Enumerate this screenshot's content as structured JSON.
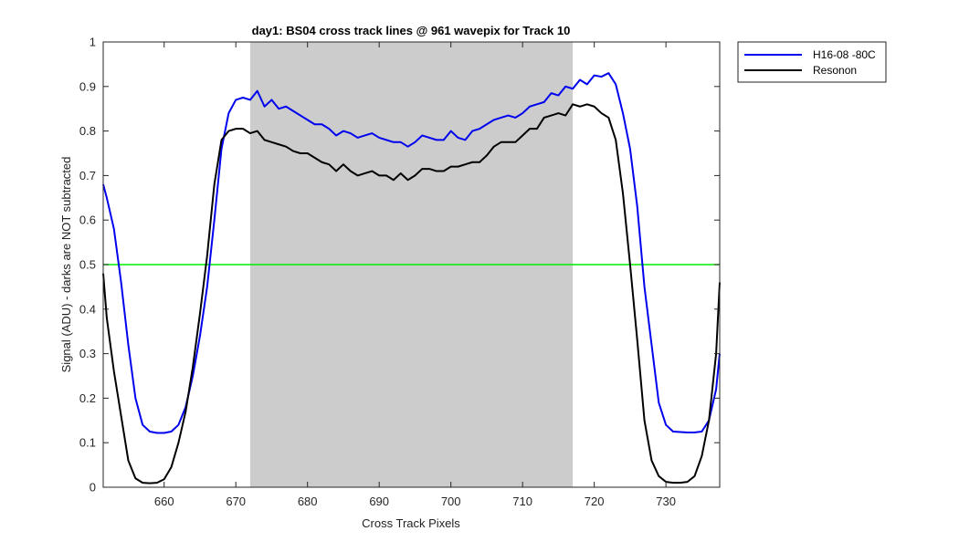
{
  "chart_data": {
    "type": "line",
    "title": "day1: BS04  cross track lines @ 961 wavepix for Track 10",
    "xlabel": "Cross Track Pixels",
    "ylabel": "Signal (ADU) - darks are NOT subtracted",
    "xlim": [
      651.5,
      737.5
    ],
    "ylim": [
      0,
      1
    ],
    "xticks": [
      660,
      670,
      680,
      690,
      700,
      710,
      720,
      730
    ],
    "yticks": [
      0,
      0.1,
      0.2,
      0.3,
      0.4,
      0.5,
      0.6,
      0.7,
      0.8,
      0.9,
      1
    ],
    "grid": false,
    "legend_position": "outside-top-right",
    "shaded_region": {
      "x": [
        672,
        717
      ],
      "color": "#cccccc"
    },
    "hline": {
      "y": 0.5,
      "color": "#00ee00"
    },
    "x": [
      651.5,
      652,
      653,
      654,
      655,
      656,
      657,
      658,
      659,
      660,
      661,
      662,
      663,
      664,
      665,
      666,
      667,
      668,
      669,
      670,
      671,
      672,
      673,
      674,
      675,
      676,
      677,
      678,
      679,
      680,
      681,
      682,
      683,
      684,
      685,
      686,
      687,
      688,
      689,
      690,
      691,
      692,
      693,
      694,
      695,
      696,
      697,
      698,
      699,
      700,
      701,
      702,
      703,
      704,
      705,
      706,
      707,
      708,
      709,
      710,
      711,
      712,
      713,
      714,
      715,
      716,
      717,
      718,
      719,
      720,
      721,
      722,
      723,
      724,
      725,
      726,
      727,
      728,
      729,
      730,
      731,
      732,
      733,
      734,
      735,
      736,
      737,
      737.5
    ],
    "series": [
      {
        "name": "H16-08 -80C",
        "color": "#0000ee",
        "values": [
          0.68,
          0.65,
          0.58,
          0.46,
          0.32,
          0.2,
          0.14,
          0.125,
          0.122,
          0.122,
          0.125,
          0.14,
          0.18,
          0.25,
          0.34,
          0.45,
          0.6,
          0.76,
          0.84,
          0.87,
          0.875,
          0.87,
          0.89,
          0.855,
          0.87,
          0.85,
          0.855,
          0.845,
          0.835,
          0.825,
          0.815,
          0.815,
          0.805,
          0.79,
          0.8,
          0.795,
          0.785,
          0.79,
          0.795,
          0.785,
          0.78,
          0.775,
          0.775,
          0.765,
          0.775,
          0.79,
          0.785,
          0.78,
          0.78,
          0.8,
          0.785,
          0.78,
          0.8,
          0.805,
          0.815,
          0.825,
          0.83,
          0.835,
          0.83,
          0.84,
          0.855,
          0.86,
          0.865,
          0.885,
          0.88,
          0.9,
          0.895,
          0.915,
          0.905,
          0.925,
          0.922,
          0.93,
          0.905,
          0.84,
          0.76,
          0.63,
          0.45,
          0.32,
          0.19,
          0.14,
          0.125,
          0.124,
          0.123,
          0.123,
          0.125,
          0.15,
          0.22,
          0.3
        ]
      },
      {
        "name": "Resonon",
        "color": "#000000",
        "values": [
          0.48,
          0.38,
          0.26,
          0.16,
          0.06,
          0.02,
          0.01,
          0.009,
          0.01,
          0.018,
          0.045,
          0.1,
          0.17,
          0.27,
          0.39,
          0.52,
          0.68,
          0.78,
          0.8,
          0.805,
          0.805,
          0.795,
          0.8,
          0.78,
          0.775,
          0.77,
          0.765,
          0.755,
          0.75,
          0.75,
          0.74,
          0.73,
          0.725,
          0.71,
          0.725,
          0.71,
          0.7,
          0.705,
          0.71,
          0.7,
          0.7,
          0.69,
          0.705,
          0.69,
          0.7,
          0.715,
          0.715,
          0.71,
          0.71,
          0.72,
          0.72,
          0.725,
          0.73,
          0.73,
          0.745,
          0.765,
          0.775,
          0.775,
          0.775,
          0.79,
          0.805,
          0.805,
          0.83,
          0.835,
          0.84,
          0.835,
          0.86,
          0.855,
          0.86,
          0.855,
          0.84,
          0.83,
          0.78,
          0.66,
          0.5,
          0.33,
          0.15,
          0.06,
          0.025,
          0.012,
          0.01,
          0.01,
          0.012,
          0.025,
          0.07,
          0.15,
          0.3,
          0.46
        ]
      }
    ]
  }
}
